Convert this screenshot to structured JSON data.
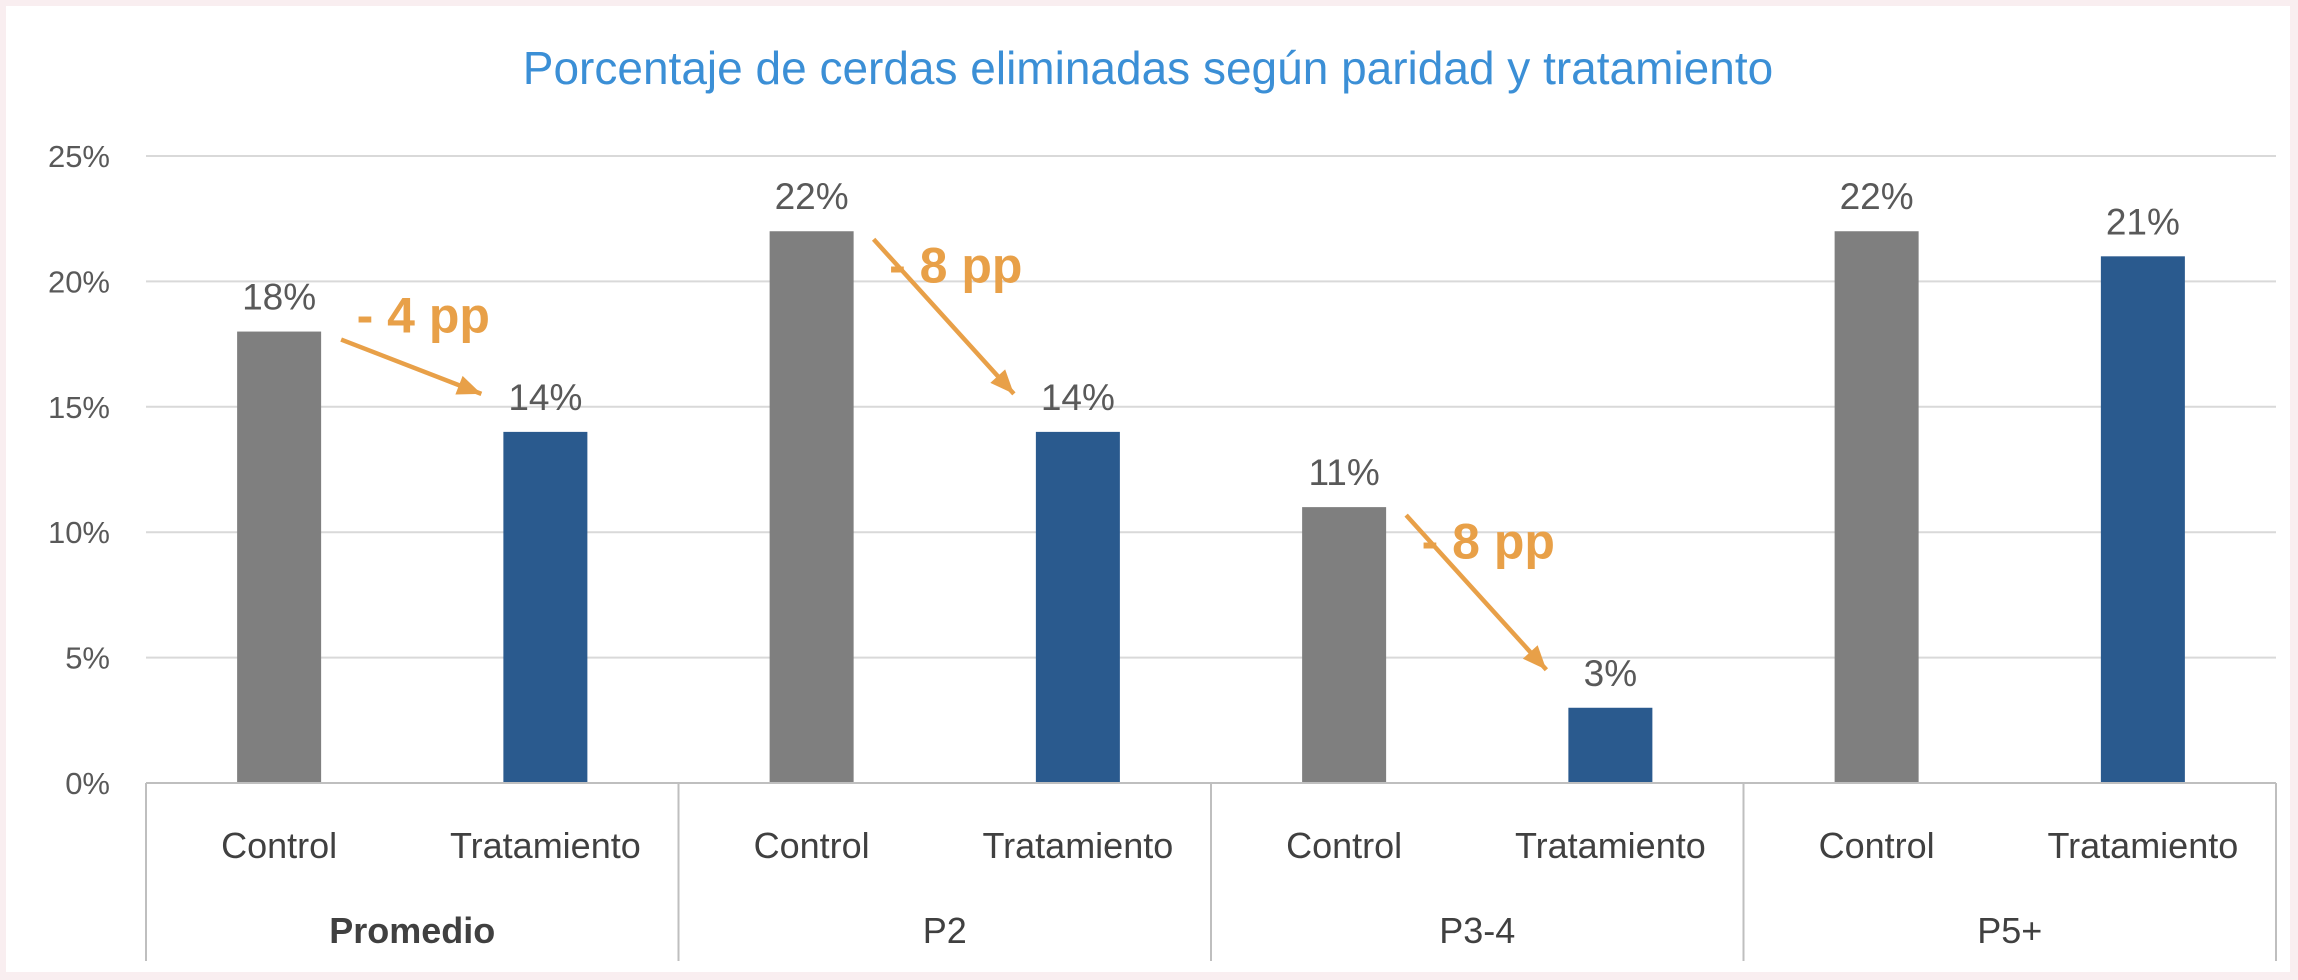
{
  "chart_data": {
    "type": "bar",
    "title": "Porcentaje de cerdas eliminadas según paridad y tratamiento",
    "xlabel": "",
    "ylabel": "",
    "ylim": [
      0,
      25
    ],
    "yticks": [
      "0%",
      "5%",
      "10%",
      "15%",
      "20%",
      "25%"
    ],
    "ytick_values": [
      0,
      5,
      10,
      15,
      20,
      25
    ],
    "grid": true,
    "groups": [
      {
        "name": "Promedio",
        "bars": [
          {
            "label": "Control",
            "value": 18,
            "value_label": "18%",
            "series": "control"
          },
          {
            "label": "Tratamiento",
            "value": 14,
            "value_label": "14%",
            "series": "tratamiento"
          }
        ],
        "annotation": "- 4 pp"
      },
      {
        "name": "P2",
        "bars": [
          {
            "label": "Control",
            "value": 22,
            "value_label": "22%",
            "series": "control"
          },
          {
            "label": "Tratamiento",
            "value": 14,
            "value_label": "14%",
            "series": "tratamiento"
          }
        ],
        "annotation": "- 8 pp"
      },
      {
        "name": "P3-4",
        "bars": [
          {
            "label": "Control",
            "value": 11,
            "value_label": "11%",
            "series": "control"
          },
          {
            "label": "Tratamiento",
            "value": 3,
            "value_label": "3%",
            "series": "tratamiento"
          }
        ],
        "annotation": "- 8 pp"
      },
      {
        "name": "P5+",
        "bars": [
          {
            "label": "Control",
            "value": 22,
            "value_label": "22%",
            "series": "control"
          },
          {
            "label": "Tratamiento",
            "value": 21,
            "value_label": "21%",
            "series": "tratamiento"
          }
        ],
        "annotation": null
      }
    ],
    "colors": {
      "control": "#7f7f7f",
      "tratamiento": "#2a5a8e",
      "annotation": "#e8a048",
      "title": "#3b8fd6",
      "grid": "#d9d9d9",
      "axis": "#bfbfbf"
    }
  }
}
